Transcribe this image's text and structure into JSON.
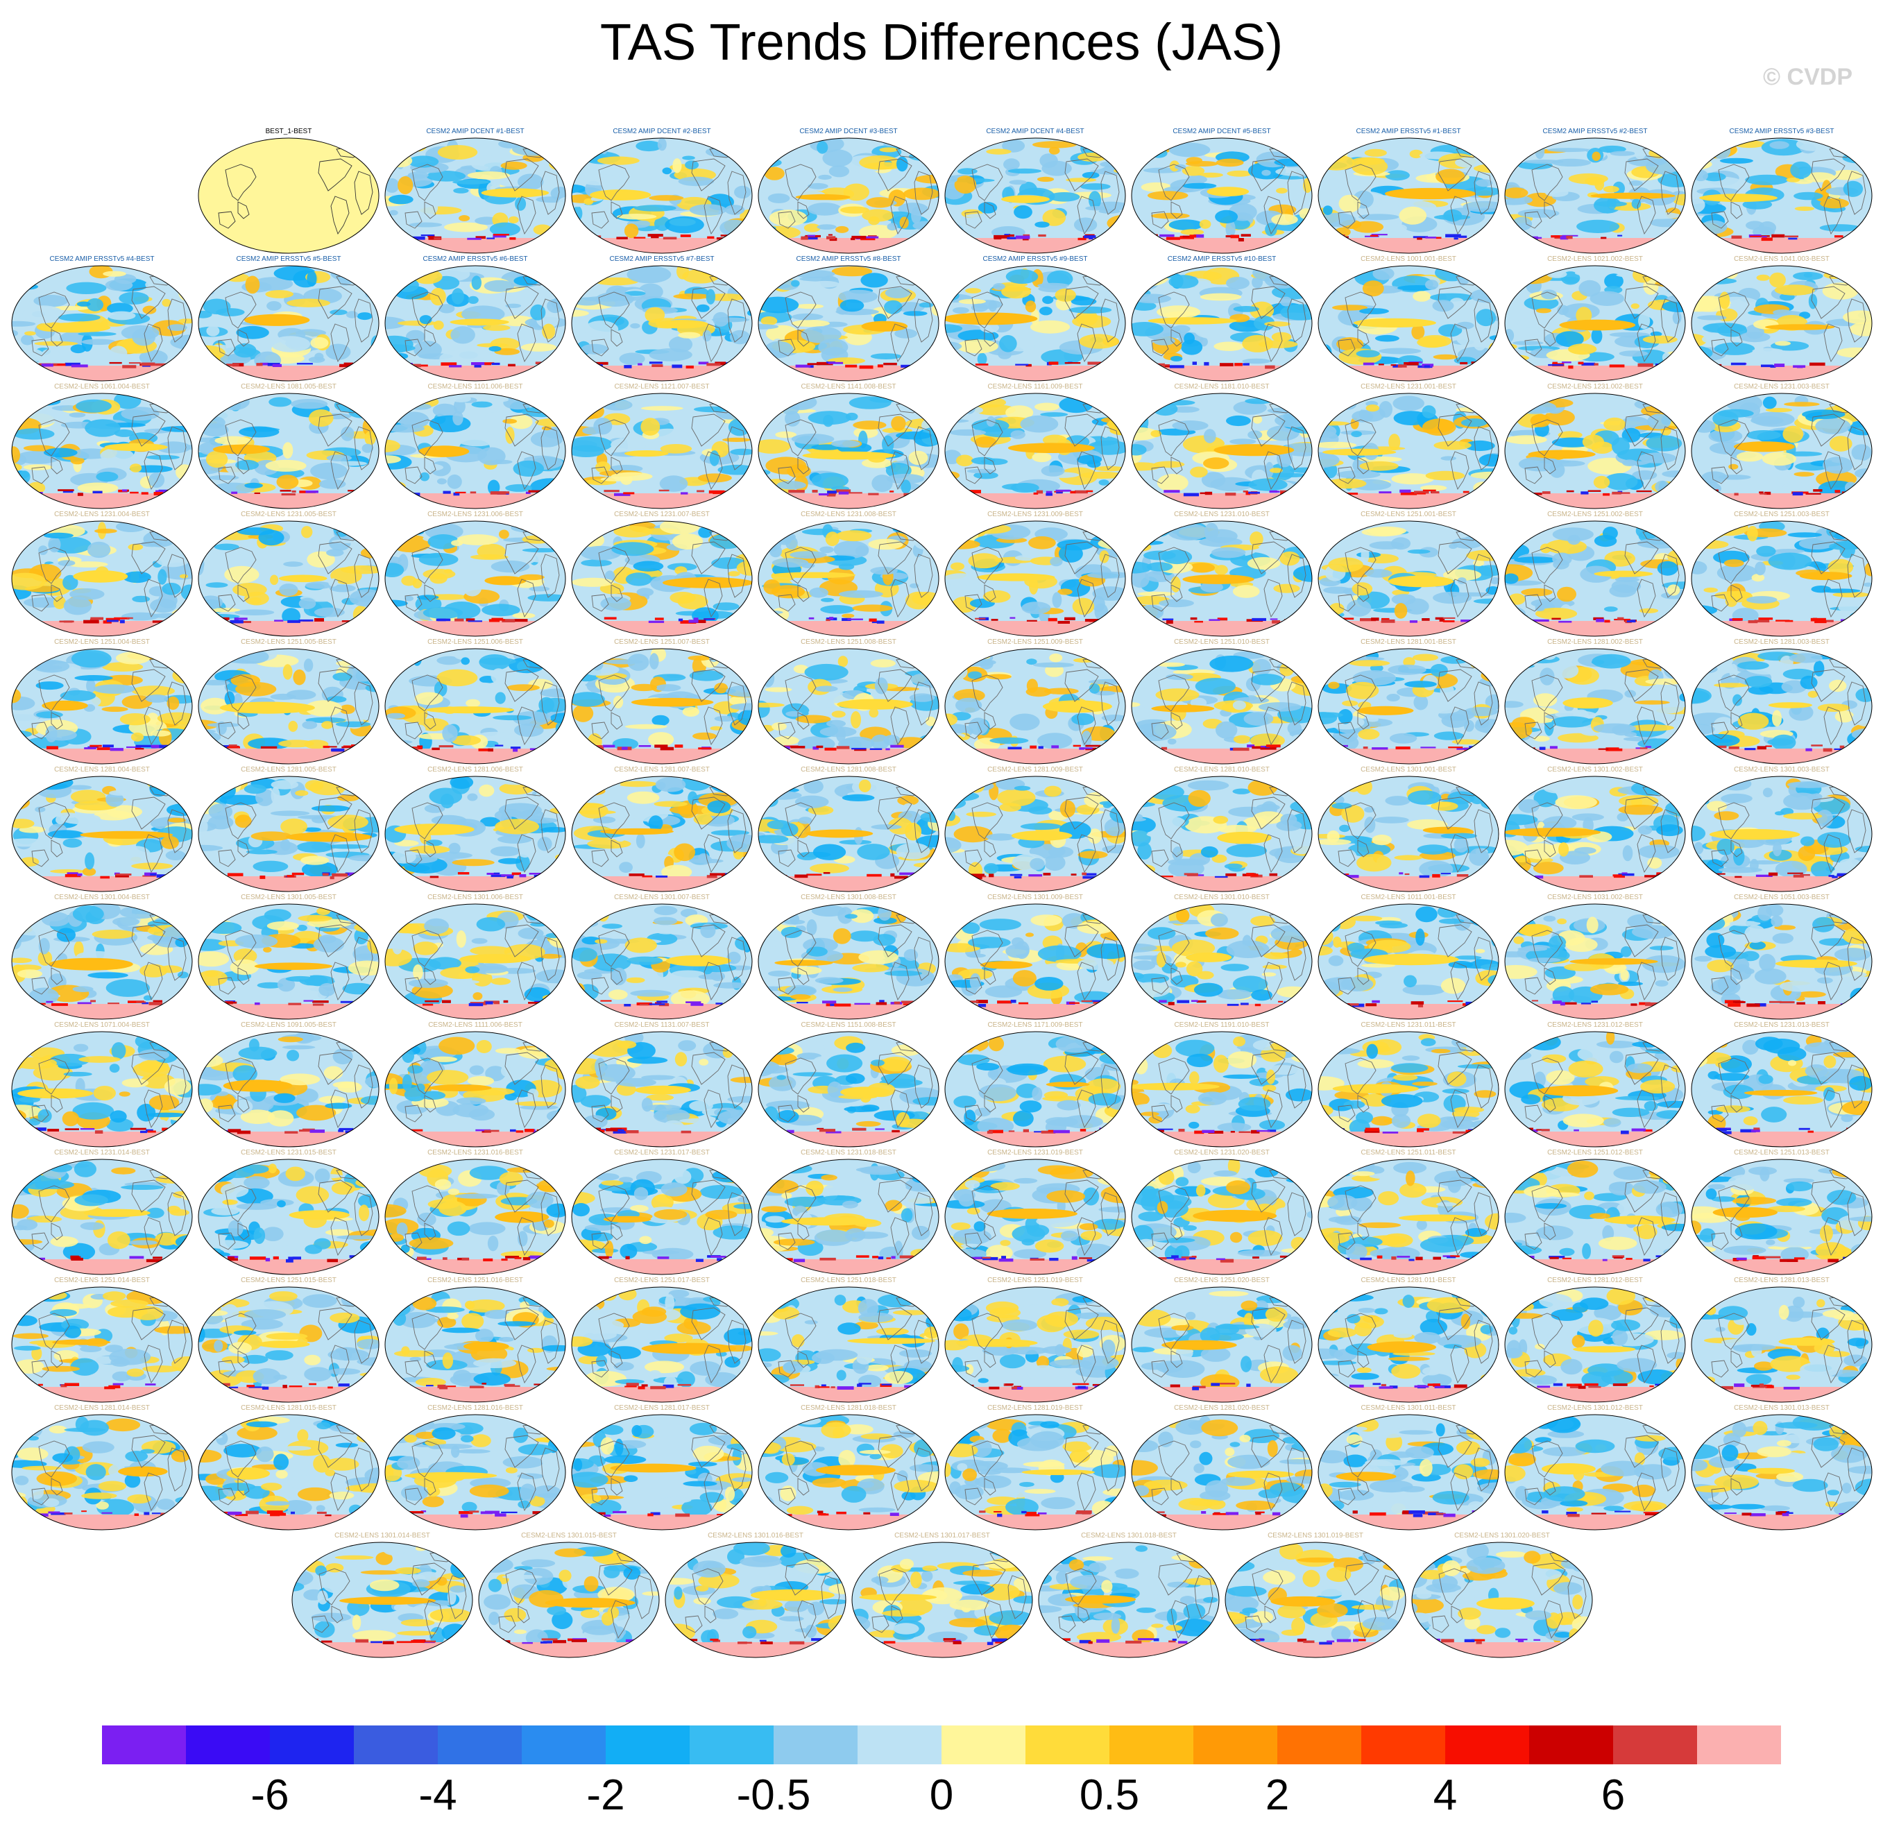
{
  "title": "TAS Trends Differences (JAS)",
  "credit": "© CVDP",
  "panel_title_colors": {
    "obs": "#000000",
    "amip": "#1a5fa8",
    "lens": "#c9b48a"
  },
  "panels": [
    {
      "label": "BEST_1-BEST",
      "kind": "obs"
    },
    {
      "label": "CESM2 AMIP DCENT #1-BEST",
      "kind": "amip"
    },
    {
      "label": "CESM2 AMIP DCENT #2-BEST",
      "kind": "amip"
    },
    {
      "label": "CESM2 AMIP DCENT #3-BEST",
      "kind": "amip"
    },
    {
      "label": "CESM2 AMIP DCENT #4-BEST",
      "kind": "amip"
    },
    {
      "label": "CESM2 AMIP DCENT #5-BEST",
      "kind": "amip"
    },
    {
      "label": "CESM2 AMIP ERSSTv5 #1-BEST",
      "kind": "amip"
    },
    {
      "label": "CESM2 AMIP ERSSTv5 #2-BEST",
      "kind": "amip"
    },
    {
      "label": "CESM2 AMIP ERSSTv5 #3-BEST",
      "kind": "amip"
    },
    {
      "label": "CESM2 AMIP ERSSTv5 #4-BEST",
      "kind": "amip"
    },
    {
      "label": "CESM2 AMIP ERSSTv5 #5-BEST",
      "kind": "amip"
    },
    {
      "label": "CESM2 AMIP ERSSTv5 #6-BEST",
      "kind": "amip"
    },
    {
      "label": "CESM2 AMIP ERSSTv5 #7-BEST",
      "kind": "amip"
    },
    {
      "label": "CESM2 AMIP ERSSTv5 #8-BEST",
      "kind": "amip"
    },
    {
      "label": "CESM2 AMIP ERSSTv5 #9-BEST",
      "kind": "amip"
    },
    {
      "label": "CESM2 AMIP ERSSTv5 #10-BEST",
      "kind": "amip"
    },
    {
      "label": "CESM2-LENS 1001.001-BEST",
      "kind": "lens"
    },
    {
      "label": "CESM2-LENS 1021.002-BEST",
      "kind": "lens"
    },
    {
      "label": "CESM2-LENS 1041.003-BEST",
      "kind": "lens"
    },
    {
      "label": "CESM2-LENS 1061.004-BEST",
      "kind": "lens"
    },
    {
      "label": "CESM2-LENS 1081.005-BEST",
      "kind": "lens"
    },
    {
      "label": "CESM2-LENS 1101.006-BEST",
      "kind": "lens"
    },
    {
      "label": "CESM2-LENS 1121.007-BEST",
      "kind": "lens"
    },
    {
      "label": "CESM2-LENS 1141.008-BEST",
      "kind": "lens"
    },
    {
      "label": "CESM2-LENS 1161.009-BEST",
      "kind": "lens"
    },
    {
      "label": "CESM2-LENS 1181.010-BEST",
      "kind": "lens"
    },
    {
      "label": "CESM2-LENS 1231.001-BEST",
      "kind": "lens"
    },
    {
      "label": "CESM2-LENS 1231.002-BEST",
      "kind": "lens"
    },
    {
      "label": "CESM2-LENS 1231.003-BEST",
      "kind": "lens"
    },
    {
      "label": "CESM2-LENS 1231.004-BEST",
      "kind": "lens"
    },
    {
      "label": "CESM2-LENS 1231.005-BEST",
      "kind": "lens"
    },
    {
      "label": "CESM2-LENS 1231.006-BEST",
      "kind": "lens"
    },
    {
      "label": "CESM2-LENS 1231.007-BEST",
      "kind": "lens"
    },
    {
      "label": "CESM2-LENS 1231.008-BEST",
      "kind": "lens"
    },
    {
      "label": "CESM2-LENS 1231.009-BEST",
      "kind": "lens"
    },
    {
      "label": "CESM2-LENS 1231.010-BEST",
      "kind": "lens"
    },
    {
      "label": "CESM2-LENS 1251.001-BEST",
      "kind": "lens"
    },
    {
      "label": "CESM2-LENS 1251.002-BEST",
      "kind": "lens"
    },
    {
      "label": "CESM2-LENS 1251.003-BEST",
      "kind": "lens"
    },
    {
      "label": "CESM2-LENS 1251.004-BEST",
      "kind": "lens"
    },
    {
      "label": "CESM2-LENS 1251.005-BEST",
      "kind": "lens"
    },
    {
      "label": "CESM2-LENS 1251.006-BEST",
      "kind": "lens"
    },
    {
      "label": "CESM2-LENS 1251.007-BEST",
      "kind": "lens"
    },
    {
      "label": "CESM2-LENS 1251.008-BEST",
      "kind": "lens"
    },
    {
      "label": "CESM2-LENS 1251.009-BEST",
      "kind": "lens"
    },
    {
      "label": "CESM2-LENS 1251.010-BEST",
      "kind": "lens"
    },
    {
      "label": "CESM2-LENS 1281.001-BEST",
      "kind": "lens"
    },
    {
      "label": "CESM2-LENS 1281.002-BEST",
      "kind": "lens"
    },
    {
      "label": "CESM2-LENS 1281.003-BEST",
      "kind": "lens"
    },
    {
      "label": "CESM2-LENS 1281.004-BEST",
      "kind": "lens"
    },
    {
      "label": "CESM2-LENS 1281.005-BEST",
      "kind": "lens"
    },
    {
      "label": "CESM2-LENS 1281.006-BEST",
      "kind": "lens"
    },
    {
      "label": "CESM2-LENS 1281.007-BEST",
      "kind": "lens"
    },
    {
      "label": "CESM2-LENS 1281.008-BEST",
      "kind": "lens"
    },
    {
      "label": "CESM2-LENS 1281.009-BEST",
      "kind": "lens"
    },
    {
      "label": "CESM2-LENS 1281.010-BEST",
      "kind": "lens"
    },
    {
      "label": "CESM2-LENS 1301.001-BEST",
      "kind": "lens"
    },
    {
      "label": "CESM2-LENS 1301.002-BEST",
      "kind": "lens"
    },
    {
      "label": "CESM2-LENS 1301.003-BEST",
      "kind": "lens"
    },
    {
      "label": "CESM2-LENS 1301.004-BEST",
      "kind": "lens"
    },
    {
      "label": "CESM2-LENS 1301.005-BEST",
      "kind": "lens"
    },
    {
      "label": "CESM2-LENS 1301.006-BEST",
      "kind": "lens"
    },
    {
      "label": "CESM2-LENS 1301.007-BEST",
      "kind": "lens"
    },
    {
      "label": "CESM2-LENS 1301.008-BEST",
      "kind": "lens"
    },
    {
      "label": "CESM2-LENS 1301.009-BEST",
      "kind": "lens"
    },
    {
      "label": "CESM2-LENS 1301.010-BEST",
      "kind": "lens"
    },
    {
      "label": "CESM2-LENS 1011.001-BEST",
      "kind": "lens"
    },
    {
      "label": "CESM2-LENS 1031.002-BEST",
      "kind": "lens"
    },
    {
      "label": "CESM2-LENS 1051.003-BEST",
      "kind": "lens"
    },
    {
      "label": "CESM2-LENS 1071.004-BEST",
      "kind": "lens"
    },
    {
      "label": "CESM2-LENS 1091.005-BEST",
      "kind": "lens"
    },
    {
      "label": "CESM2-LENS 1111.006-BEST",
      "kind": "lens"
    },
    {
      "label": "CESM2-LENS 1131.007-BEST",
      "kind": "lens"
    },
    {
      "label": "CESM2-LENS 1151.008-BEST",
      "kind": "lens"
    },
    {
      "label": "CESM2-LENS 1171.009-BEST",
      "kind": "lens"
    },
    {
      "label": "CESM2-LENS 1191.010-BEST",
      "kind": "lens"
    },
    {
      "label": "CESM2-LENS 1231.011-BEST",
      "kind": "lens"
    },
    {
      "label": "CESM2-LENS 1231.012-BEST",
      "kind": "lens"
    },
    {
      "label": "CESM2-LENS 1231.013-BEST",
      "kind": "lens"
    },
    {
      "label": "CESM2-LENS 1231.014-BEST",
      "kind": "lens"
    },
    {
      "label": "CESM2-LENS 1231.015-BEST",
      "kind": "lens"
    },
    {
      "label": "CESM2-LENS 1231.016-BEST",
      "kind": "lens"
    },
    {
      "label": "CESM2-LENS 1231.017-BEST",
      "kind": "lens"
    },
    {
      "label": "CESM2-LENS 1231.018-BEST",
      "kind": "lens"
    },
    {
      "label": "CESM2-LENS 1231.019-BEST",
      "kind": "lens"
    },
    {
      "label": "CESM2-LENS 1231.020-BEST",
      "kind": "lens"
    },
    {
      "label": "CESM2-LENS 1251.011-BEST",
      "kind": "lens"
    },
    {
      "label": "CESM2-LENS 1251.012-BEST",
      "kind": "lens"
    },
    {
      "label": "CESM2-LENS 1251.013-BEST",
      "kind": "lens"
    },
    {
      "label": "CESM2-LENS 1251.014-BEST",
      "kind": "lens"
    },
    {
      "label": "CESM2-LENS 1251.015-BEST",
      "kind": "lens"
    },
    {
      "label": "CESM2-LENS 1251.016-BEST",
      "kind": "lens"
    },
    {
      "label": "CESM2-LENS 1251.017-BEST",
      "kind": "lens"
    },
    {
      "label": "CESM2-LENS 1251.018-BEST",
      "kind": "lens"
    },
    {
      "label": "CESM2-LENS 1251.019-BEST",
      "kind": "lens"
    },
    {
      "label": "CESM2-LENS 1251.020-BEST",
      "kind": "lens"
    },
    {
      "label": "CESM2-LENS 1281.011-BEST",
      "kind": "lens"
    },
    {
      "label": "CESM2-LENS 1281.012-BEST",
      "kind": "lens"
    },
    {
      "label": "CESM2-LENS 1281.013-BEST",
      "kind": "lens"
    },
    {
      "label": "CESM2-LENS 1281.014-BEST",
      "kind": "lens"
    },
    {
      "label": "CESM2-LENS 1281.015-BEST",
      "kind": "lens"
    },
    {
      "label": "CESM2-LENS 1281.016-BEST",
      "kind": "lens"
    },
    {
      "label": "CESM2-LENS 1281.017-BEST",
      "kind": "lens"
    },
    {
      "label": "CESM2-LENS 1281.018-BEST",
      "kind": "lens"
    },
    {
      "label": "CESM2-LENS 1281.019-BEST",
      "kind": "lens"
    },
    {
      "label": "CESM2-LENS 1281.020-BEST",
      "kind": "lens"
    },
    {
      "label": "CESM2-LENS 1301.011-BEST",
      "kind": "lens"
    },
    {
      "label": "CESM2-LENS 1301.012-BEST",
      "kind": "lens"
    },
    {
      "label": "CESM2-LENS 1301.013-BEST",
      "kind": "lens"
    },
    {
      "label": "CESM2-LENS 1301.014-BEST",
      "kind": "lens"
    },
    {
      "label": "CESM2-LENS 1301.015-BEST",
      "kind": "lens"
    },
    {
      "label": "CESM2-LENS 1301.016-BEST",
      "kind": "lens"
    },
    {
      "label": "CESM2-LENS 1301.017-BEST",
      "kind": "lens"
    },
    {
      "label": "CESM2-LENS 1301.018-BEST",
      "kind": "lens"
    },
    {
      "label": "CESM2-LENS 1301.019-BEST",
      "kind": "lens"
    },
    {
      "label": "CESM2-LENS 1301.020-BEST",
      "kind": "lens"
    }
  ],
  "colorbar": {
    "colors": [
      "#7b1ff2",
      "#3a0bf5",
      "#1e24f0",
      "#3a5ce0",
      "#3072e6",
      "#2a8cf0",
      "#12aef5",
      "#38bcf2",
      "#8ecbee",
      "#bde2f4",
      "#fff69a",
      "#ffdc3a",
      "#ffbc14",
      "#ff9a06",
      "#ff7203",
      "#ff3a00",
      "#f70e00",
      "#cc0000",
      "#d63a3a",
      "#fbb0b0"
    ],
    "labels": [
      "-6",
      "-4",
      "-2",
      "-0.5",
      "0",
      "0.5",
      "2",
      "4",
      "6"
    ]
  }
}
